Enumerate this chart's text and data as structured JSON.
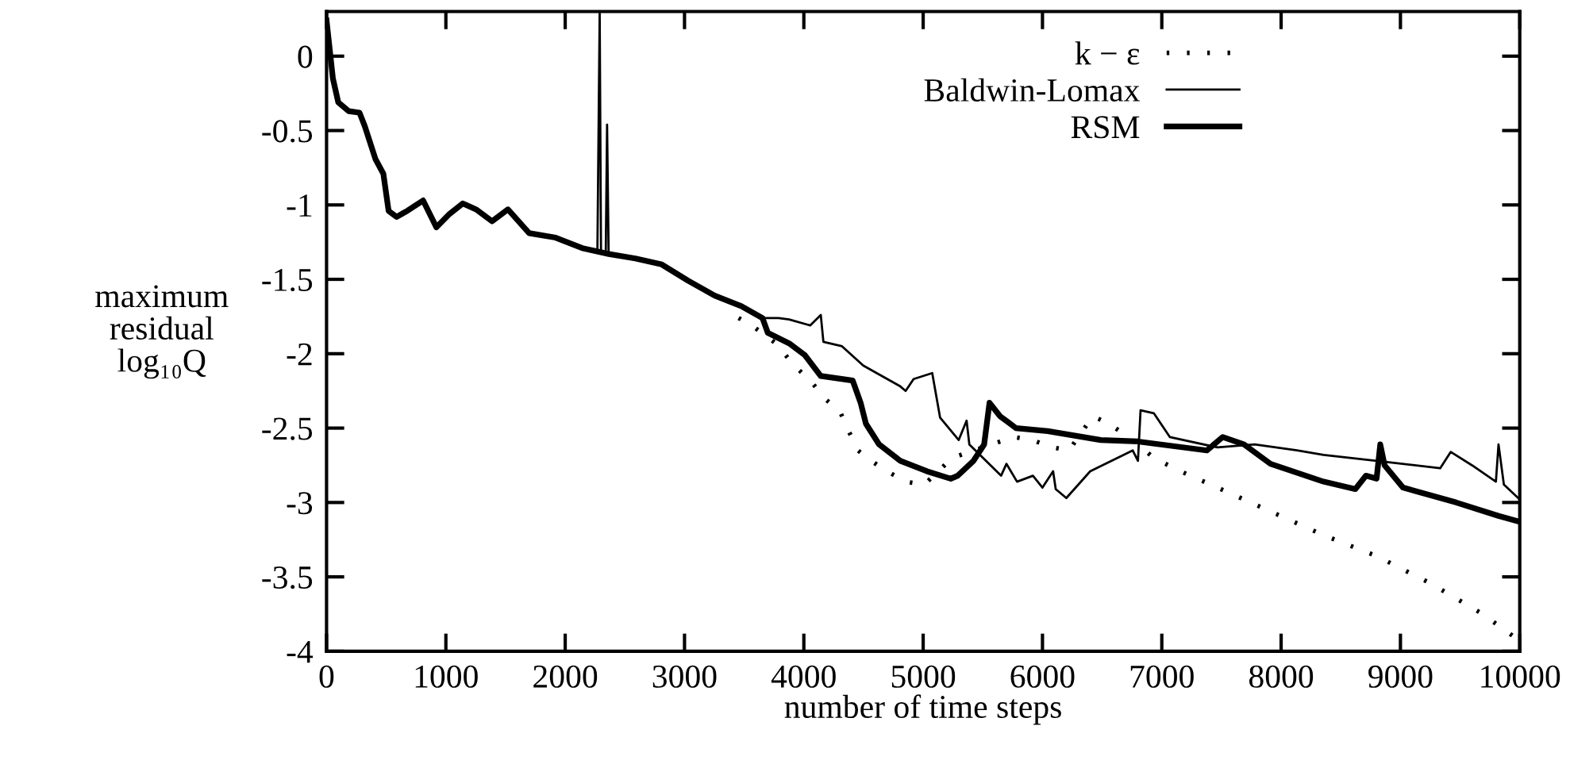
{
  "chart_data": {
    "type": "line",
    "xlabel": "number of time steps",
    "ylabel": "maximum\nresidual\nlog₁₀Q",
    "xlim": [
      0,
      10000
    ],
    "ylim": [
      -4,
      0.3
    ],
    "xticks": [
      0,
      1000,
      2000,
      3000,
      4000,
      5000,
      6000,
      7000,
      8000,
      9000,
      10000
    ],
    "yticks": [
      0,
      -0.5,
      -1,
      -1.5,
      -2,
      -2.5,
      -3,
      -3.5,
      -4
    ],
    "grid": false,
    "legend": "top right",
    "series": [
      {
        "name": "k − ε",
        "color": "#000000",
        "line_style": "dotted",
        "x": [
          3453,
          3564,
          3764,
          3920,
          4053,
          4187,
          4298,
          4364,
          4453,
          4564,
          4698,
          4853,
          5009,
          5244,
          5756,
          5911,
          6089,
          6222,
          6422,
          6556,
          6756,
          6933,
          7156,
          7467,
          7911,
          8356,
          8800,
          9244,
          9689,
          10000
        ],
        "values": [
          -1.76,
          -1.81,
          -1.93,
          -2.08,
          -2.18,
          -2.31,
          -2.38,
          -2.5,
          -2.65,
          -2.72,
          -2.79,
          -2.86,
          -2.88,
          -2.7,
          -2.56,
          -2.58,
          -2.63,
          -2.65,
          -2.42,
          -2.47,
          -2.58,
          -2.7,
          -2.79,
          -2.9,
          -3.06,
          -3.22,
          -3.36,
          -3.54,
          -3.75,
          -3.93
        ]
      },
      {
        "name": "Baldwin-Lomax",
        "color": "#000000",
        "line_style": "solid",
        "x": [
          0,
          53,
          98,
          187,
          276,
          320,
          409,
          476,
          520,
          587,
          676,
          809,
          920,
          1031,
          1142,
          1253,
          1387,
          1520,
          1698,
          1920,
          2142,
          2270,
          2289,
          2300,
          2340,
          2351,
          2364,
          2587,
          2809,
          3031,
          3253,
          3476,
          3653,
          3787,
          3876,
          4053,
          4142,
          4164,
          4320,
          4498,
          4809,
          4853,
          4920,
          5076,
          5142,
          5298,
          5364,
          5387,
          5653,
          5698,
          5787,
          5920,
          6000,
          6089,
          6111,
          6200,
          6400,
          6756,
          6800,
          6822,
          6933,
          7067,
          7467,
          7778,
          8133,
          8356,
          8800,
          9333,
          9422,
          9600,
          9800,
          9822,
          9867,
          10000
        ],
        "values": [
          0.24,
          -0.15,
          -0.31,
          -0.37,
          -0.38,
          -0.47,
          -0.69,
          -0.79,
          -1.04,
          -1.08,
          -1.04,
          -0.97,
          -1.15,
          -1.06,
          -0.99,
          -1.03,
          -1.11,
          -1.03,
          -1.19,
          -1.22,
          -1.29,
          -1.3,
          0.3,
          -1.31,
          -1.32,
          -0.46,
          -1.33,
          -1.36,
          -1.4,
          -1.51,
          -1.61,
          -1.68,
          -1.76,
          -1.76,
          -1.77,
          -1.81,
          -1.74,
          -1.92,
          -1.95,
          -2.08,
          -2.22,
          -2.25,
          -2.17,
          -2.13,
          -2.43,
          -2.58,
          -2.45,
          -2.61,
          -2.82,
          -2.74,
          -2.86,
          -2.82,
          -2.9,
          -2.79,
          -2.91,
          -2.97,
          -2.79,
          -2.65,
          -2.72,
          -2.38,
          -2.4,
          -2.56,
          -2.63,
          -2.61,
          -2.65,
          -2.68,
          -2.72,
          -2.77,
          -2.66,
          -2.75,
          -2.86,
          -2.61,
          -2.88,
          -2.98
        ]
      },
      {
        "name": "RSM",
        "color": "#000000",
        "line_style": "solid",
        "x": [
          0,
          53,
          98,
          187,
          276,
          320,
          409,
          476,
          520,
          587,
          676,
          809,
          920,
          1031,
          1142,
          1253,
          1387,
          1520,
          1698,
          1920,
          2142,
          2364,
          2587,
          2809,
          3031,
          3253,
          3476,
          3653,
          3698,
          3876,
          4009,
          4142,
          4409,
          4476,
          4520,
          4631,
          4809,
          5031,
          5231,
          5289,
          5422,
          5511,
          5556,
          5644,
          5778,
          6044,
          6489,
          6800,
          7378,
          7511,
          7689,
          7911,
          8356,
          8622,
          8711,
          8800,
          8831,
          8867,
          9022,
          9467,
          9822,
          10000
        ],
        "values": [
          0.24,
          -0.15,
          -0.31,
          -0.37,
          -0.38,
          -0.47,
          -0.69,
          -0.79,
          -1.04,
          -1.08,
          -1.04,
          -0.97,
          -1.15,
          -1.06,
          -0.99,
          -1.03,
          -1.11,
          -1.03,
          -1.19,
          -1.22,
          -1.29,
          -1.33,
          -1.36,
          -1.4,
          -1.51,
          -1.61,
          -1.68,
          -1.76,
          -1.86,
          -1.93,
          -2.01,
          -2.15,
          -2.18,
          -2.33,
          -2.47,
          -2.61,
          -2.72,
          -2.79,
          -2.84,
          -2.82,
          -2.72,
          -2.61,
          -2.33,
          -2.42,
          -2.5,
          -2.52,
          -2.58,
          -2.59,
          -2.65,
          -2.56,
          -2.61,
          -2.74,
          -2.86,
          -2.91,
          -2.82,
          -2.84,
          -2.61,
          -2.75,
          -2.9,
          -3.0,
          -3.09,
          -3.13
        ]
      }
    ]
  }
}
